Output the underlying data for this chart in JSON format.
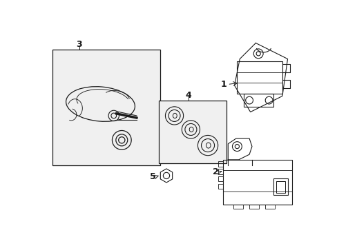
{
  "bg_color": "#ffffff",
  "line_color": "#1a1a1a",
  "box_bg": "#f0f0f0",
  "label1": "1",
  "label2": "2",
  "label3": "3",
  "label4": "4",
  "label5": "5"
}
